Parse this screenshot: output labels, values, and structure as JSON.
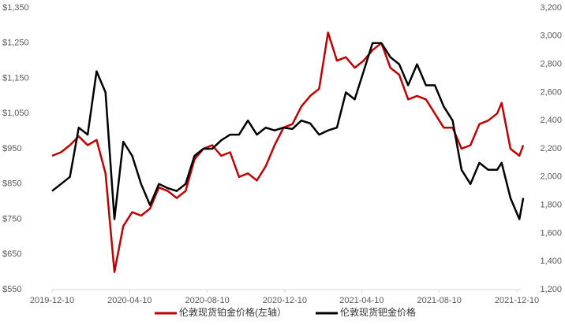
{
  "chart_data": {
    "type": "line",
    "x": [
      "2019-12-10",
      "2019-12-24",
      "2020-01-07",
      "2020-01-21",
      "2020-02-04",
      "2020-02-18",
      "2020-03-03",
      "2020-03-17",
      "2020-03-31",
      "2020-04-14",
      "2020-04-28",
      "2020-05-12",
      "2020-05-26",
      "2020-06-09",
      "2020-06-23",
      "2020-07-07",
      "2020-07-21",
      "2020-08-04",
      "2020-08-18",
      "2020-09-01",
      "2020-09-15",
      "2020-09-29",
      "2020-10-13",
      "2020-10-27",
      "2020-11-10",
      "2020-11-24",
      "2020-12-08",
      "2020-12-22",
      "2021-01-05",
      "2021-01-19",
      "2021-02-02",
      "2021-02-16",
      "2021-03-02",
      "2021-03-16",
      "2021-03-30",
      "2021-04-13",
      "2021-04-27",
      "2021-05-11",
      "2021-05-25",
      "2021-06-08",
      "2021-06-22",
      "2021-07-06",
      "2021-07-20",
      "2021-08-03",
      "2021-08-17",
      "2021-08-31",
      "2021-09-14",
      "2021-09-28",
      "2021-10-12",
      "2021-10-26",
      "2021-11-09",
      "2021-11-16",
      "2021-11-30",
      "2021-12-14",
      "2021-12-20"
    ],
    "series": [
      {
        "name": "伦敦现货铂金价格(左轴）",
        "color": "#c00000",
        "values": [
          930,
          940,
          960,
          985,
          960,
          975,
          880,
          600,
          730,
          770,
          760,
          780,
          840,
          830,
          810,
          830,
          920,
          950,
          960,
          930,
          940,
          870,
          880,
          860,
          900,
          960,
          1010,
          1020,
          1070,
          1100,
          1120,
          1280,
          1200,
          1210,
          1180,
          1200,
          1230,
          1250,
          1180,
          1160,
          1090,
          1100,
          1090,
          1050,
          1010,
          1010,
          950,
          960,
          1020,
          1030,
          1050,
          1080,
          950,
          930,
          960
        ]
      },
      {
        "name": "伦敦现货钯金价格",
        "color": "#000000",
        "axis": "y2",
        "values": [
          1900,
          1950,
          2000,
          2350,
          2300,
          2750,
          2600,
          1700,
          2250,
          2150,
          1950,
          1800,
          1950,
          1920,
          1900,
          1950,
          2150,
          2200,
          2200,
          2260,
          2300,
          2300,
          2400,
          2300,
          2350,
          2330,
          2350,
          2340,
          2400,
          2380,
          2300,
          2330,
          2350,
          2600,
          2550,
          2750,
          2950,
          2950,
          2850,
          2800,
          2650,
          2800,
          2650,
          2650,
          2500,
          2400,
          2050,
          1950,
          2100,
          2050,
          2050,
          2100,
          1850,
          1700,
          1850
        ]
      }
    ],
    "ylim": [
      550,
      1350
    ],
    "yticks": [
      {
        "value": 550,
        "label": "$550"
      },
      {
        "value": 650,
        "label": "$650"
      },
      {
        "value": 750,
        "label": "$750"
      },
      {
        "value": 850,
        "label": "$850"
      },
      {
        "value": 950,
        "label": "$950"
      },
      {
        "value": 1050,
        "label": "$1,050"
      },
      {
        "value": 1150,
        "label": "$1,150"
      },
      {
        "value": 1250,
        "label": "$1,250"
      },
      {
        "value": 1350,
        "label": "$1,350"
      }
    ],
    "y2lim": [
      1200,
      3200
    ],
    "y2ticks": [
      {
        "value": 1200,
        "label": "1,200"
      },
      {
        "value": 1400,
        "label": "1,400"
      },
      {
        "value": 1600,
        "label": "1,600"
      },
      {
        "value": 1800,
        "label": "1,800"
      },
      {
        "value": 2000,
        "label": "2,000"
      },
      {
        "value": 2200,
        "label": "2,200"
      },
      {
        "value": 2400,
        "label": "2,400"
      },
      {
        "value": 2600,
        "label": "2,600"
      },
      {
        "value": 2800,
        "label": "2,800"
      },
      {
        "value": 3000,
        "label": "3,000"
      },
      {
        "value": 3200,
        "label": "3,200"
      }
    ],
    "xlim": [
      "2019-12-10",
      "2021-12-10"
    ],
    "xticks": [
      "2019-12-10",
      "2020-04-10",
      "2020-08-10",
      "2020-12-10",
      "2021-04-10",
      "2021-08-10",
      "2021-12-10"
    ],
    "grid": false
  }
}
